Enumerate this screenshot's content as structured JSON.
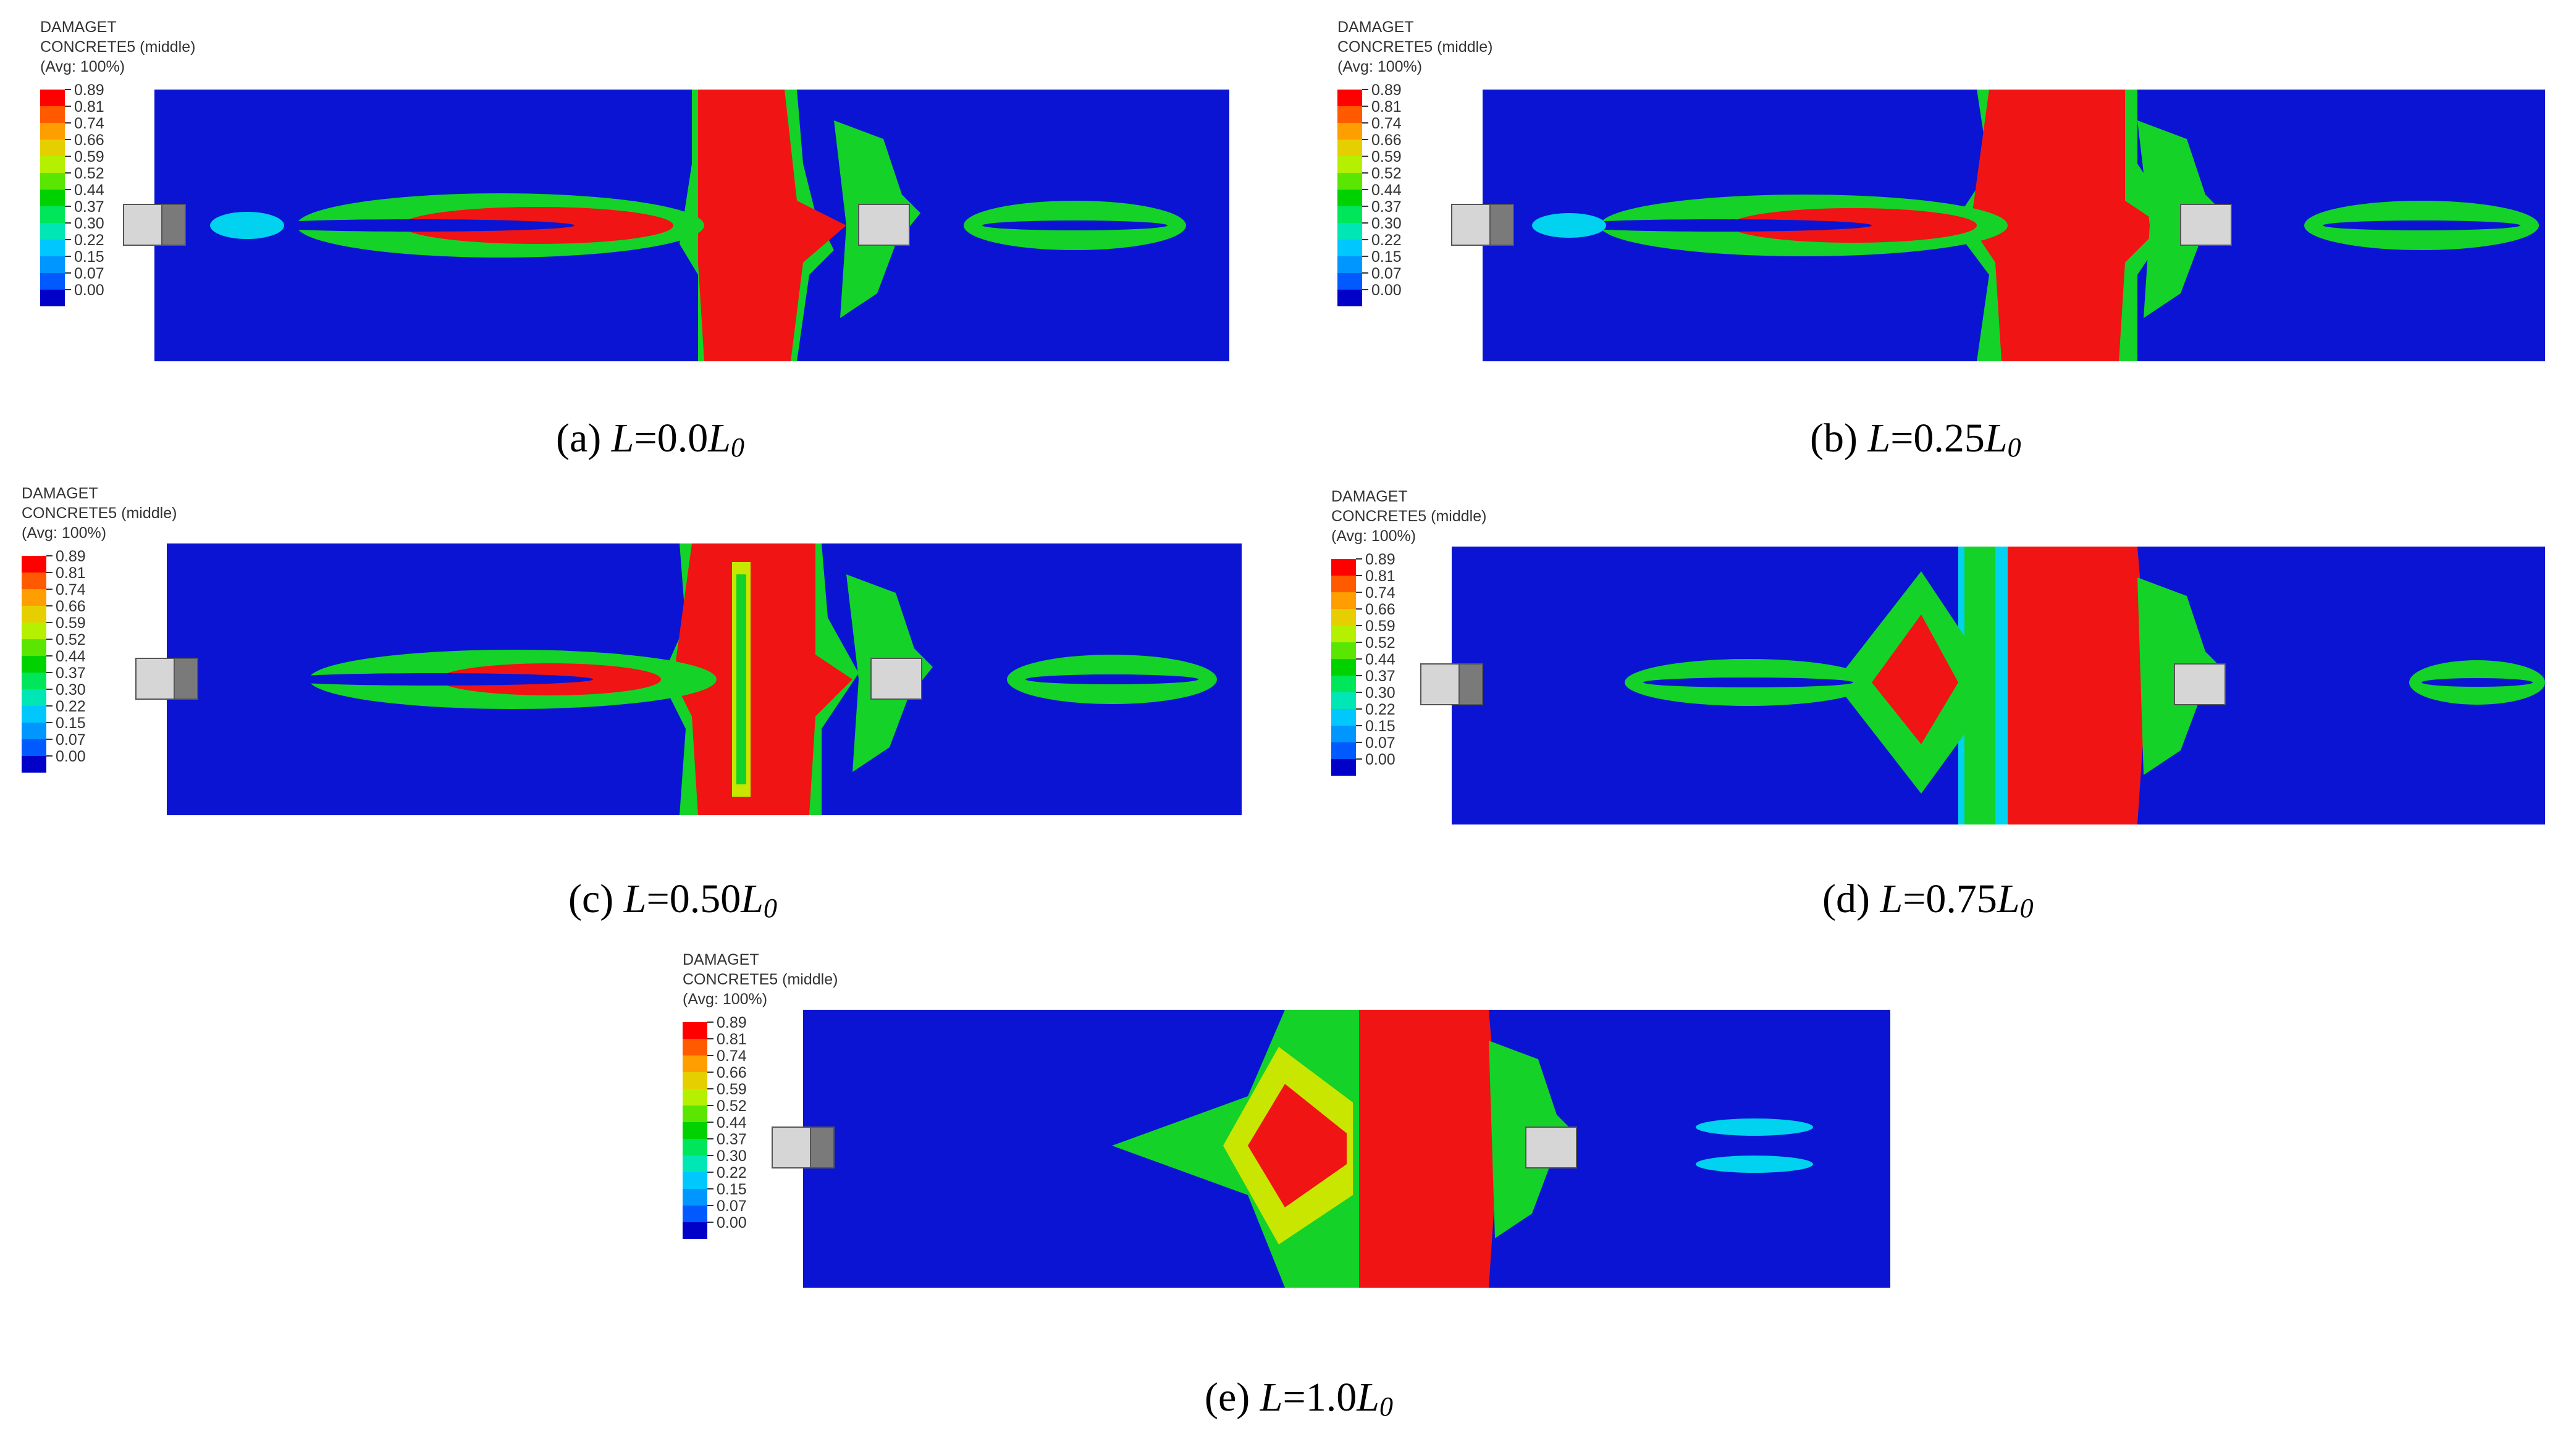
{
  "legend": {
    "variable": "DAMAGET",
    "material": "CONCRETE5 (middle)",
    "averaging": "(Avg: 100%)",
    "levels": [
      "0.89",
      "0.81",
      "0.74",
      "0.66",
      "0.59",
      "0.52",
      "0.44",
      "0.37",
      "0.30",
      "0.22",
      "0.15",
      "0.07",
      "0.00"
    ],
    "colors": [
      "#ff0000",
      "#ff5a00",
      "#ff9e00",
      "#e6cf00",
      "#b4f000",
      "#5ae600",
      "#00d200",
      "#00e65a",
      "#00e6b4",
      "#00c8ff",
      "#0096ff",
      "#005aff",
      "#0000c8"
    ]
  },
  "field_colors": {
    "background": "#0a14d2",
    "cyan": "#00d2f0",
    "green": "#14d228",
    "yellow": "#c8e600",
    "orange": "#ff8c00",
    "red": "#f01414",
    "support_light": "#d6d6d6",
    "support_dark": "#7a7a7a"
  },
  "panels": [
    {
      "id": "a",
      "prefix": "(a) ",
      "var": "L",
      "eq": "=0.0",
      "sym": "L",
      "sub": "0"
    },
    {
      "id": "b",
      "prefix": "(b) ",
      "var": "L",
      "eq": "=0.25",
      "sym": "L",
      "sub": "0"
    },
    {
      "id": "c",
      "prefix": "(c) ",
      "var": "L",
      "eq": "=0.50",
      "sym": "L",
      "sub": "0"
    },
    {
      "id": "d",
      "prefix": "(d) ",
      "var": "L",
      "eq": "=0.75",
      "sym": "L",
      "sub": "0"
    },
    {
      "id": "e",
      "prefix": "(e) ",
      "var": "L",
      "eq": "=1.0",
      "sym": "L",
      "sub": "0"
    }
  ]
}
